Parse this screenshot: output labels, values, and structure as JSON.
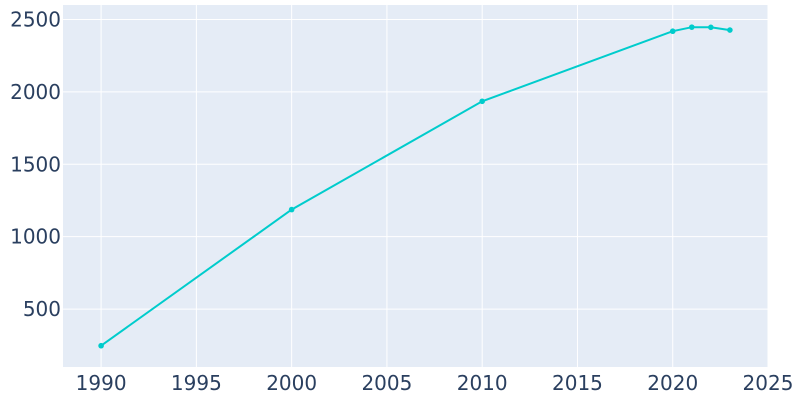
{
  "chart_data": {
    "type": "line",
    "title": "",
    "xlabel": "",
    "ylabel": "",
    "x": [
      1990,
      2000,
      2010,
      2020,
      2021,
      2022,
      2023
    ],
    "series": [
      {
        "values": [
          247,
          1187,
          1935,
          2419,
          2447,
          2446,
          2427
        ]
      }
    ],
    "xlim": [
      1988,
      2025
    ],
    "ylim": [
      100,
      2600
    ],
    "x_ticks": [
      1990,
      1995,
      2000,
      2005,
      2010,
      2015,
      2020,
      2025
    ],
    "y_ticks": [
      500,
      1000,
      1500,
      2000,
      2500
    ],
    "x_tick_labels": [
      "1990",
      "1995",
      "2000",
      "2005",
      "2010",
      "2015",
      "2020",
      "2025"
    ],
    "y_tick_labels": [
      "500",
      "1000",
      "1500",
      "2000",
      "2500"
    ],
    "grid": true,
    "colors": {
      "line": "#00cccc",
      "background": "#e5ecf6",
      "grid": "#ffffff",
      "text": "#2a3f5f"
    }
  }
}
